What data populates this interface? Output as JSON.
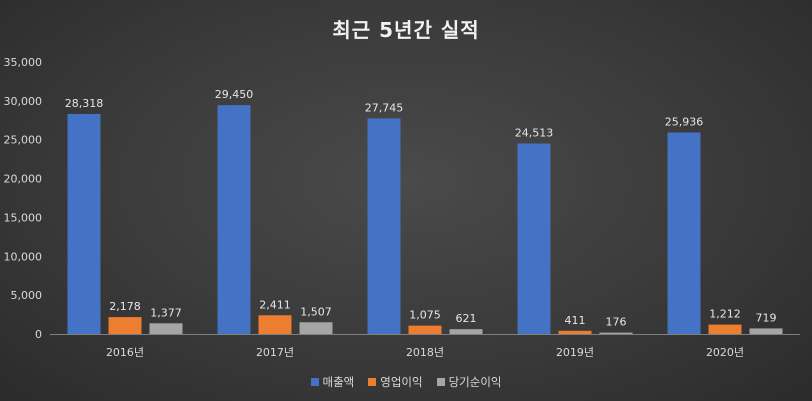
{
  "chart_data": {
    "type": "bar",
    "title": "최근 5년간 실적",
    "categories": [
      "2016년",
      "2017년",
      "2018년",
      "2019년",
      "2020년"
    ],
    "series": [
      {
        "name": "매출액",
        "values": [
          28318,
          29450,
          27745,
          24513,
          25936
        ],
        "color": "#4472c4"
      },
      {
        "name": "영업이익",
        "values": [
          2178,
          2411,
          1075,
          411,
          1212
        ],
        "color": "#ed7d31"
      },
      {
        "name": "당기순이익",
        "values": [
          1377,
          1507,
          621,
          176,
          719
        ],
        "color": "#a5a5a5"
      }
    ],
    "data_labels": [
      [
        "28,318",
        "29,450",
        "27,745",
        "24,513",
        "25,936"
      ],
      [
        "2,178",
        "2,411",
        "1,075",
        "411",
        "1,212"
      ],
      [
        "1,377",
        "1,507",
        "621",
        "176",
        "719"
      ]
    ],
    "yticks": [
      "0",
      "5,000",
      "10,000",
      "15,000",
      "20,000",
      "25,000",
      "30,000",
      "35,000"
    ],
    "ylim": [
      0,
      35000
    ],
    "grid": false,
    "legend_position": "bottom"
  }
}
